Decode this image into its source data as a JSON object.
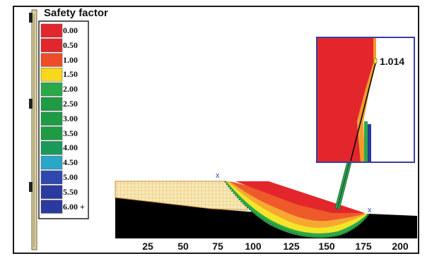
{
  "legend": {
    "title": "Safety factor",
    "items": [
      {
        "label": "0.00",
        "color": "#e3262b"
      },
      {
        "label": "0.50",
        "color": "#e3262b"
      },
      {
        "label": "1.00",
        "color": "#ee4d2a"
      },
      {
        "label": "1.50",
        "color": "#f9d71c"
      },
      {
        "label": "2.00",
        "color": "#2aa84a"
      },
      {
        "label": "2.50",
        "color": "#1f9a45"
      },
      {
        "label": "3.00",
        "color": "#1f9a45"
      },
      {
        "label": "3.50",
        "color": "#1f9a45"
      },
      {
        "label": "4.00",
        "color": "#1a9a5a"
      },
      {
        "label": "4.50",
        "color": "#2aa6c8"
      },
      {
        "label": "5.00",
        "color": "#2f48b0"
      },
      {
        "label": "5.50",
        "color": "#2b3a9e"
      },
      {
        "label": "6.00 +",
        "color": "#2b3a9e"
      }
    ]
  },
  "inset": {
    "safety_factor_value": "1.014"
  },
  "x_axis": {
    "ticks": [
      "25",
      "50",
      "75",
      "100",
      "125",
      "150",
      "175",
      "200"
    ]
  },
  "colors": {
    "slope_red": "#e3262b",
    "ground": "#000000",
    "fill_tan": "#f5e6b0",
    "ruler": "#d9cfa3",
    "inset_border": "#3b3f9e"
  }
}
